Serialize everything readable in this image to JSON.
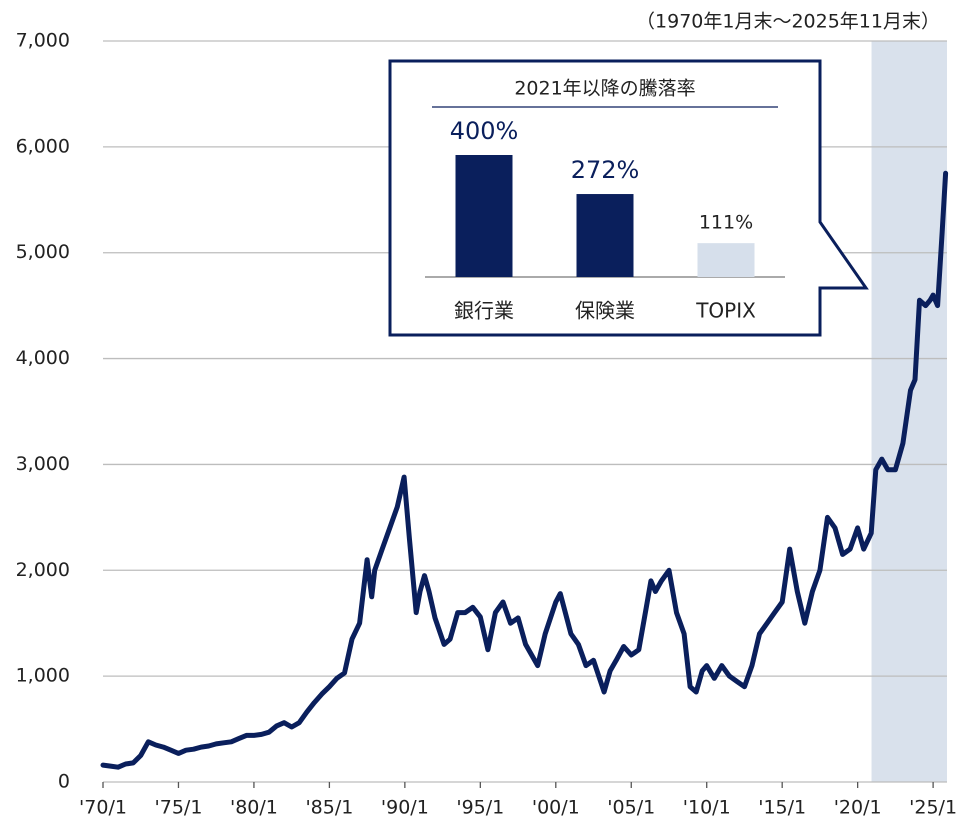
{
  "chart_data": [
    {
      "type": "line",
      "annotation": "（1970年1月末～2025年11月末）",
      "color": "#0a1f5c",
      "highlight_color": "#d9e1ec",
      "highlight_xrange": [
        2020.92,
        2025.92
      ],
      "xlim": [
        1970,
        2025.92
      ],
      "ylim": [
        0,
        7000
      ],
      "xticks": [
        {
          "value": 1970,
          "label": "'70/1"
        },
        {
          "value": 1975,
          "label": "'75/1"
        },
        {
          "value": 1980,
          "label": "'80/1"
        },
        {
          "value": 1985,
          "label": "'85/1"
        },
        {
          "value": 1990,
          "label": "'90/1"
        },
        {
          "value": 1995,
          "label": "'95/1"
        },
        {
          "value": 2000,
          "label": "'00/1"
        },
        {
          "value": 2005,
          "label": "'05/1"
        },
        {
          "value": 2010,
          "label": "'10/1"
        },
        {
          "value": 2015,
          "label": "'15/1"
        },
        {
          "value": 2020,
          "label": "'20/1"
        },
        {
          "value": 2025,
          "label": "'25/1"
        }
      ],
      "yticks": [
        0,
        {
          "value": 1000,
          "label": "1,000"
        },
        {
          "value": 2000,
          "label": "2,000"
        },
        {
          "value": 3000,
          "label": "3,000"
        },
        {
          "value": 4000,
          "label": "4,000"
        },
        {
          "value": 5000,
          "label": "5,000"
        },
        {
          "value": 6000,
          "label": "6,000"
        },
        {
          "value": 7000,
          "label": "7,000"
        }
      ],
      "grid": true,
      "x": [
        1970.0,
        1970.5,
        1971.0,
        1971.5,
        1972.0,
        1972.5,
        1973.0,
        1973.5,
        1974.0,
        1974.5,
        1975.0,
        1975.5,
        1976.0,
        1976.5,
        1977.0,
        1977.5,
        1978.0,
        1978.5,
        1979.0,
        1979.5,
        1980.0,
        1980.5,
        1981.0,
        1981.5,
        1982.0,
        1982.5,
        1983.0,
        1983.5,
        1984.0,
        1984.5,
        1985.0,
        1985.5,
        1986.0,
        1986.5,
        1987.0,
        1987.5,
        1987.8,
        1988.0,
        1988.5,
        1989.0,
        1989.5,
        1989.95,
        1990.3,
        1990.75,
        1991.0,
        1991.3,
        1991.6,
        1992.0,
        1992.6,
        1993.0,
        1993.5,
        1994.0,
        1994.5,
        1995.0,
        1995.5,
        1996.0,
        1996.5,
        1997.0,
        1997.5,
        1998.0,
        1998.8,
        1999.3,
        2000.0,
        2000.3,
        2001.0,
        2001.5,
        2002.0,
        2002.5,
        2003.2,
        2003.6,
        2004.0,
        2004.5,
        2005.0,
        2005.5,
        2006.0,
        2006.3,
        2006.6,
        2007.0,
        2007.5,
        2008.0,
        2008.5,
        2008.9,
        2009.3,
        2009.7,
        2010.0,
        2010.5,
        2011.0,
        2011.5,
        2012.0,
        2012.5,
        2013.0,
        2013.5,
        2014.0,
        2014.5,
        2015.0,
        2015.5,
        2016.0,
        2016.5,
        2017.0,
        2017.5,
        2018.0,
        2018.5,
        2019.0,
        2019.5,
        2020.0,
        2020.4,
        2020.9,
        2021.2,
        2021.6,
        2022.0,
        2022.5,
        2023.0,
        2023.5,
        2023.8,
        2024.1,
        2024.5,
        2024.8,
        2025.0,
        2025.3,
        2025.6,
        2025.83
      ],
      "values": [
        160,
        150,
        140,
        170,
        180,
        250,
        380,
        350,
        330,
        300,
        270,
        300,
        310,
        330,
        340,
        360,
        370,
        380,
        410,
        440,
        440,
        450,
        470,
        530,
        560,
        520,
        560,
        660,
        750,
        830,
        900,
        980,
        1030,
        1350,
        1500,
        2100,
        1750,
        2000,
        2200,
        2400,
        2600,
        2880,
        2300,
        1600,
        1800,
        1950,
        1800,
        1550,
        1300,
        1350,
        1600,
        1600,
        1650,
        1560,
        1250,
        1600,
        1700,
        1500,
        1550,
        1300,
        1100,
        1400,
        1700,
        1780,
        1400,
        1300,
        1100,
        1150,
        850,
        1050,
        1150,
        1280,
        1200,
        1250,
        1650,
        1900,
        1800,
        1900,
        2000,
        1600,
        1400,
        900,
        850,
        1050,
        1100,
        980,
        1100,
        1000,
        950,
        900,
        1100,
        1400,
        1500,
        1600,
        1700,
        2200,
        1800,
        1500,
        1800,
        2000,
        2500,
        2400,
        2150,
        2200,
        2400,
        2200,
        2350,
        2950,
        3050,
        2950,
        2950,
        3200,
        3700,
        3800,
        4550,
        4500,
        4550,
        4600,
        4500,
        5200,
        5750
      ]
    },
    {
      "type": "bar",
      "title": "2021年以降の騰落率",
      "categories": [
        "銀行業",
        "保険業",
        "TOPIX"
      ],
      "values": [
        400,
        272,
        111
      ],
      "value_labels": [
        "400%",
        "272%",
        "111%"
      ],
      "colors": [
        "#0a1f5c",
        "#0a1f5c",
        "#d6dfeb"
      ]
    }
  ]
}
